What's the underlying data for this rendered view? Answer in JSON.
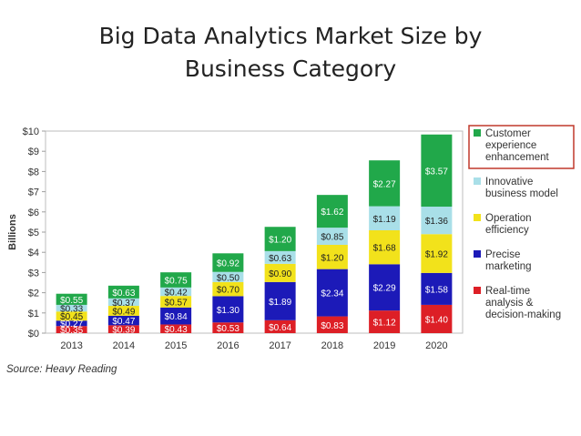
{
  "slide": {
    "title_line1": "Big Data Analytics Market Size by",
    "title_line2": "Business Category",
    "source": "Source: Heavy Reading"
  },
  "chart_data": {
    "type": "bar",
    "stacked": true,
    "title": "",
    "xlabel": "",
    "ylabel": "Billions",
    "ylim": [
      0,
      10
    ],
    "yticks": [
      "$0",
      "$1",
      "$2",
      "$3",
      "$4",
      "$5",
      "$6",
      "$7",
      "$8",
      "$9",
      "$10"
    ],
    "grid": false,
    "legend_position": "right",
    "categories": [
      "2013",
      "2014",
      "2015",
      "2016",
      "2017",
      "2018",
      "2019",
      "2020"
    ],
    "series": [
      {
        "name": "Real-time analysis & decision-making",
        "color": "#dd1f26",
        "values": [
          0.35,
          0.39,
          0.43,
          0.53,
          0.64,
          0.83,
          1.12,
          1.4
        ],
        "labels": [
          "$0.35",
          "$0.39",
          "$0.43",
          "$0.53",
          "$0.64",
          "$0.83",
          "$1.12",
          "$1.40"
        ]
      },
      {
        "name": "Precise marketing",
        "color": "#1c1ab8",
        "values": [
          0.27,
          0.47,
          0.84,
          1.3,
          1.89,
          2.34,
          2.29,
          1.58
        ],
        "labels": [
          "$0.27",
          "$0.47",
          "$0.84",
          "$1.30",
          "$1.89",
          "$2.34",
          "$2.29",
          "$1.58"
        ]
      },
      {
        "name": "Operation efficiency",
        "color": "#f2e21b",
        "values": [
          0.45,
          0.49,
          0.57,
          0.7,
          0.9,
          1.2,
          1.68,
          1.92
        ],
        "labels": [
          "$0.45",
          "$0.49",
          "$0.57",
          "$0.70",
          "$0.90",
          "$1.20",
          "$1.68",
          "$1.92"
        ]
      },
      {
        "name": "Innovative business model",
        "color": "#a9dfe8",
        "values": [
          0.33,
          0.37,
          0.42,
          0.5,
          0.63,
          0.85,
          1.19,
          1.36
        ],
        "labels": [
          "$0.33",
          "$0.37",
          "$0.42",
          "$0.50",
          "$0.63",
          "$0.85",
          "$1.19",
          "$1.36"
        ]
      },
      {
        "name": "Customer experience enhancement",
        "color": "#21a84a",
        "values": [
          0.55,
          0.63,
          0.75,
          0.92,
          1.2,
          1.62,
          2.27,
          3.57
        ],
        "labels": [
          "$0.55",
          "$0.63",
          "$0.75",
          "$0.92",
          "$1.20",
          "$1.62",
          "$2.27",
          "$3.57"
        ]
      }
    ],
    "legend": [
      {
        "lines": [
          "Customer",
          "experience",
          "enhancement"
        ],
        "color": "#21a84a",
        "highlighted": true
      },
      {
        "lines": [
          "Innovative",
          "business model"
        ],
        "color": "#a9dfe8",
        "highlighted": false
      },
      {
        "lines": [
          "Operation",
          "efficiency"
        ],
        "color": "#f2e21b",
        "highlighted": false
      },
      {
        "lines": [
          "Precise",
          "marketing"
        ],
        "color": "#1c1ab8",
        "highlighted": false
      },
      {
        "lines": [
          "Real-time",
          "analysis &",
          "decision-making"
        ],
        "color": "#dd1f26",
        "highlighted": false
      }
    ],
    "highlight_color": "#c0392b"
  }
}
